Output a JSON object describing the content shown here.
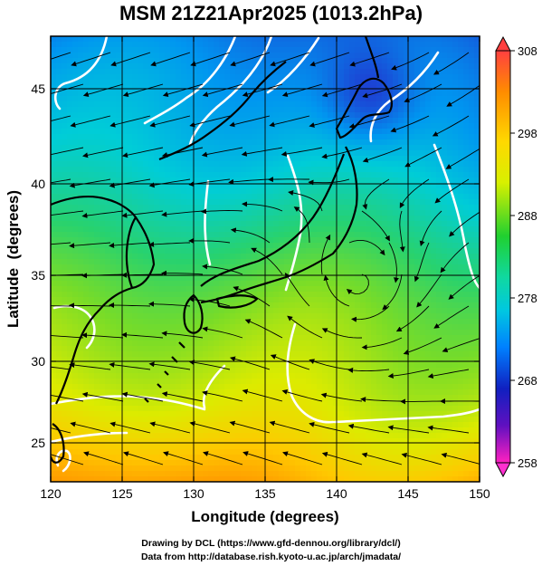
{
  "title": "MSM 21Z21Apr2025 (1013.2hPa)",
  "axes": {
    "xlabel": "Longitude (degrees)",
    "ylabel": "Latitude  (degrees)",
    "x_ticks": [
      "120",
      "125",
      "130",
      "135",
      "140",
      "145",
      "150"
    ],
    "y_ticks": [
      "25",
      "30",
      "35",
      "40",
      "45"
    ]
  },
  "colorbar": {
    "labels": [
      "308",
      "298",
      "288",
      "278",
      "268",
      "258"
    ],
    "colors": [
      "#ff3030",
      "#ff9a00",
      "#f0f000",
      "#20d020",
      "#00c8c8",
      "#0090ff",
      "#1020d0",
      "#e000c0"
    ]
  },
  "credits": {
    "line1": "Drawing by DCL (https://www.gfd-dennou.org/library/dcl/)",
    "line2": "Data from http://database.rish.kyoto-u.ac.jp/arch/jmadata/"
  },
  "colors": {
    "contour": "#ffffff",
    "coast": "#000000",
    "grid": "#000000"
  }
}
